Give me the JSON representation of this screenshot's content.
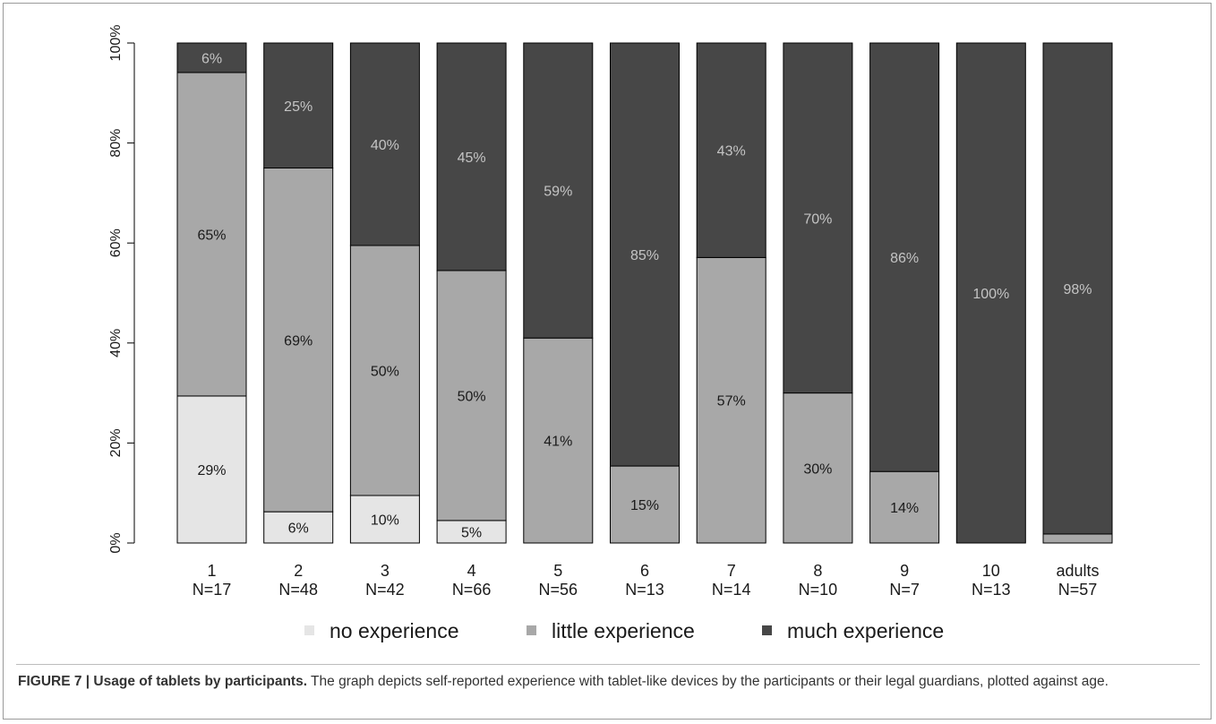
{
  "chart_data": {
    "type": "bar",
    "stacked": true,
    "percent": true,
    "categories": [
      "1",
      "2",
      "3",
      "4",
      "5",
      "6",
      "7",
      "8",
      "9",
      "10",
      "adults"
    ],
    "category_n": [
      "N=17",
      "N=48",
      "N=42",
      "N=66",
      "N=56",
      "N=13",
      "N=14",
      "N=10",
      "N=7",
      "N=13",
      "N=57"
    ],
    "series": [
      {
        "name": "no experience",
        "color": "#e5e5e5",
        "label_color": "#1a1a1a",
        "values": [
          29.4,
          6.25,
          9.5,
          4.5,
          0,
          0,
          0,
          0,
          0,
          0,
          0
        ],
        "labels": [
          "29%",
          "6%",
          "10%",
          "5%",
          "",
          "",
          "",
          "",
          "",
          "",
          ""
        ]
      },
      {
        "name": "little experience",
        "color": "#a8a8a8",
        "label_color": "#1a1a1a",
        "values": [
          64.7,
          68.75,
          50,
          50,
          41,
          15.4,
          57.1,
          30,
          14.3,
          0,
          1.8
        ],
        "labels": [
          "65%",
          "69%",
          "50%",
          "50%",
          "41%",
          "15%",
          "57%",
          "30%",
          "14%",
          "",
          ""
        ]
      },
      {
        "name": "much experience",
        "color": "#474747",
        "label_color": "#c4c4c4",
        "values": [
          5.9,
          25,
          40.5,
          45.5,
          59,
          84.6,
          42.9,
          70,
          85.7,
          100,
          98.2
        ],
        "labels": [
          "6%",
          "25%",
          "40%",
          "45%",
          "59%",
          "85%",
          "43%",
          "70%",
          "86%",
          "100%",
          "98%"
        ]
      }
    ],
    "yticks": [
      "0%",
      "20%",
      "40%",
      "60%",
      "80%",
      "100%"
    ],
    "ylim": [
      0,
      100
    ],
    "legend_position": "bottom"
  },
  "caption": {
    "bold": "FIGURE 7 | Usage of tablets by participants.",
    "text": " The graph depicts self-reported experience with tablet-like devices by the participants or their legal guardians, plotted against age."
  }
}
